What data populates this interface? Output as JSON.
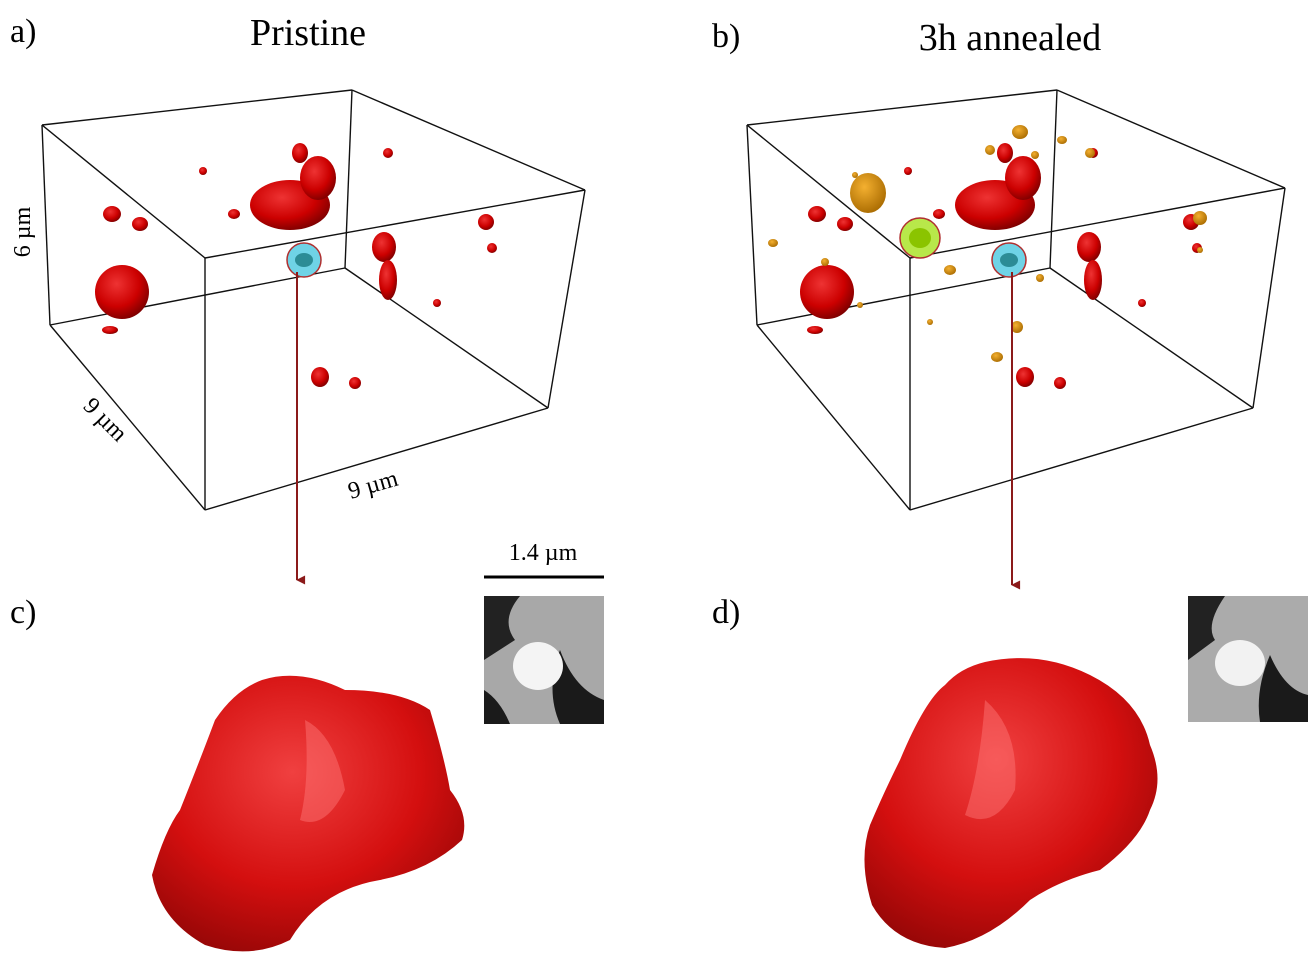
{
  "panels": {
    "a": {
      "label": "a)",
      "title": "Pristine",
      "height_label": "6 µm",
      "depth_label": "9 µm",
      "width_label": "9 µm"
    },
    "b": {
      "label": "b)",
      "title": "3h annealed"
    },
    "c": {
      "label": "c)",
      "scale_label": "1.4 µm"
    },
    "d": {
      "label": "d)"
    }
  }
}
